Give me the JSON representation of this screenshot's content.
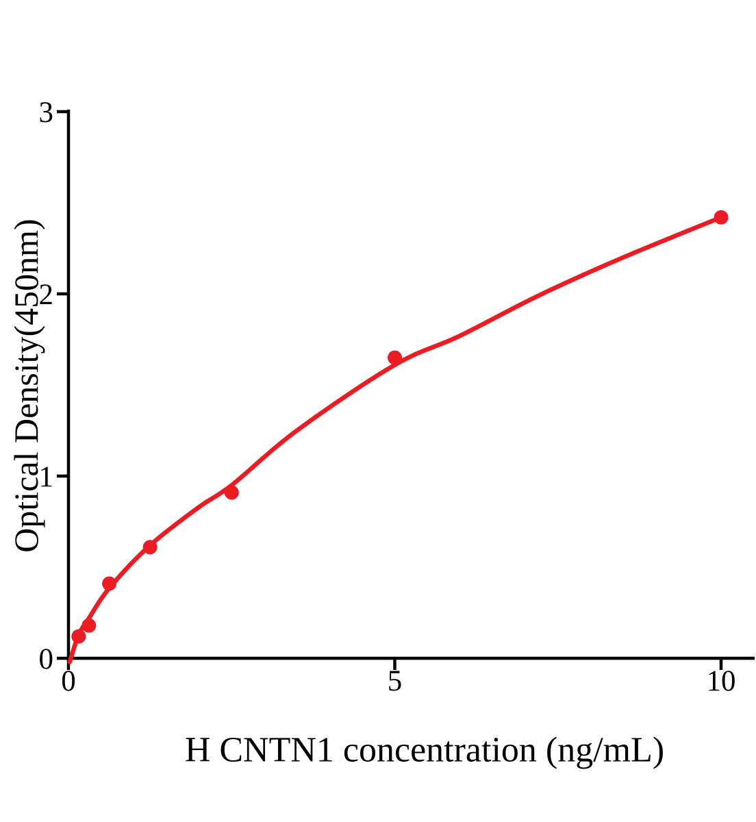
{
  "style": {
    "background": "#ffffff",
    "accent_red": "#EC1C24",
    "axis_color": "#000000"
  },
  "chart_data": {
    "type": "scatter",
    "title": "",
    "xlabel": "H CNTN1 concentration (ng/mL)",
    "ylabel": "Optical Density(450nm)",
    "xlim": [
      0,
      10.5
    ],
    "ylim": [
      0,
      3
    ],
    "grid": false,
    "legend_position": "none",
    "x_ticks": {
      "values": [
        0,
        5,
        10
      ],
      "labels": [
        "0",
        "5",
        "10"
      ]
    },
    "y_ticks": {
      "values": [
        0,
        1,
        2,
        3
      ],
      "labels": [
        "0",
        "1",
        "2",
        "3"
      ]
    },
    "series": [
      {
        "name": "standard-data-points",
        "type": "scatter",
        "color": "#EC1C24",
        "x": [
          0.156,
          0.313,
          0.625,
          1.25,
          2.5,
          5,
          10
        ],
        "y": [
          0.12,
          0.18,
          0.41,
          0.61,
          0.91,
          1.65,
          2.42
        ]
      },
      {
        "name": "fitted-curve",
        "type": "line",
        "color": "#EC1C24",
        "x": [
          0.02,
          0.156,
          0.313,
          0.625,
          1.25,
          2.0,
          2.5,
          3.5,
          5.0,
          6.0,
          7.2,
          8.5,
          10.0
        ],
        "y": [
          -0.02,
          0.13,
          0.22,
          0.385,
          0.62,
          0.83,
          0.95,
          1.25,
          1.61,
          1.77,
          1.99,
          2.2,
          2.42
        ]
      }
    ]
  }
}
